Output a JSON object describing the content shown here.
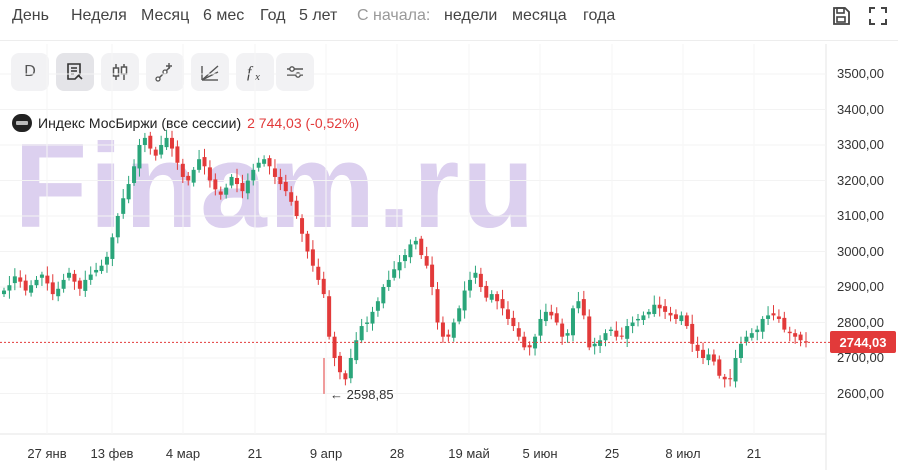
{
  "toolbar": {
    "periods": [
      "День",
      "Неделя",
      "Месяц",
      "6 мес",
      "Год",
      "5 лет"
    ],
    "since_label": "С начала:",
    "since_options": [
      "недели",
      "месяца",
      "года"
    ]
  },
  "tools": {
    "interval_label": "D"
  },
  "legend": {
    "name": "Индекс МосБиржи (все сессии)",
    "value": "2 744,03 (-0,52%)"
  },
  "watermark": "Finam.ru",
  "price_badge": "2744,03",
  "low_label": "← 2598,85",
  "colors": {
    "up": "#2aa57a",
    "down": "#e23a3a",
    "watermark": "#dcd0ef",
    "price_line": "#e23a3a"
  },
  "chart_data": {
    "type": "candlestick",
    "y_ticks": [
      "3500,00",
      "3400,00",
      "3300,00",
      "3200,00",
      "3100,00",
      "3000,00",
      "2900,00",
      "2800,00",
      "2700,00",
      "2600,00"
    ],
    "x_ticks": [
      "27 янв",
      "13 фев",
      "4 мар",
      "21",
      "9 апр",
      "28",
      "19 май",
      "5 июн",
      "25",
      "8 июл",
      "21"
    ],
    "ylim": [
      2520,
      3550
    ],
    "last_price": 2744.03,
    "min_marker": 2598.85,
    "closes": [
      2890,
      2905,
      2930,
      2915,
      2890,
      2905,
      2920,
      2935,
      2910,
      2880,
      2895,
      2920,
      2940,
      2915,
      2895,
      2920,
      2935,
      2948,
      2960,
      2985,
      3040,
      3100,
      3150,
      3190,
      3240,
      3300,
      3320,
      3290,
      3270,
      3300,
      3320,
      3290,
      3250,
      3210,
      3200,
      3230,
      3260,
      3240,
      3200,
      3175,
      3160,
      3180,
      3210,
      3190,
      3170,
      3200,
      3230,
      3250,
      3260,
      3240,
      3210,
      3190,
      3170,
      3140,
      3100,
      3050,
      3000,
      2960,
      2920,
      2880,
      2760,
      2700,
      2660,
      2640,
      2700,
      2750,
      2790,
      2800,
      2830,
      2860,
      2900,
      2920,
      2950,
      2970,
      2990,
      3020,
      3030,
      2990,
      2960,
      2900,
      2800,
      2760,
      2760,
      2800,
      2840,
      2890,
      2920,
      2940,
      2900,
      2870,
      2880,
      2860,
      2840,
      2810,
      2790,
      2760,
      2730,
      2730,
      2760,
      2810,
      2830,
      2820,
      2800,
      2760,
      2770,
      2840,
      2860,
      2820,
      2730,
      2740,
      2750,
      2770,
      2780,
      2760,
      2760,
      2790,
      2800,
      2810,
      2820,
      2830,
      2850,
      2840,
      2830,
      2820,
      2810,
      2820,
      2790,
      2740,
      2720,
      2700,
      2710,
      2690,
      2650,
      2640,
      2640,
      2700,
      2740,
      2760,
      2770,
      2780,
      2810,
      2820,
      2820,
      2810,
      2780,
      2770,
      2760,
      2750,
      2744
    ]
  }
}
